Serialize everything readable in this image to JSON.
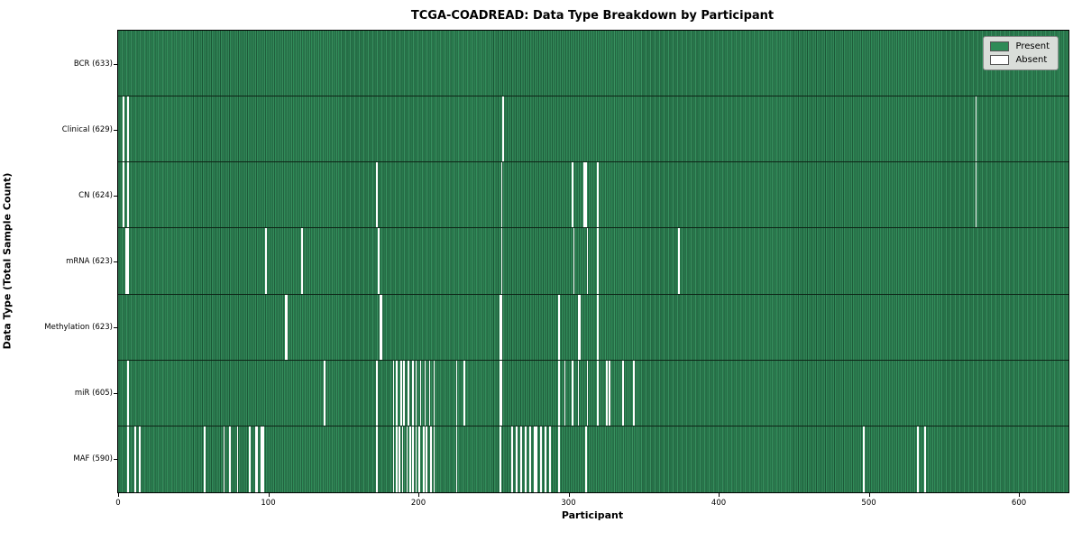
{
  "title": "TCGA-COADREAD: Data Type Breakdown by Participant",
  "chart_data": {
    "type": "heatmap",
    "title": "TCGA-COADREAD: Data Type Breakdown by Participant",
    "xlabel": "Participant",
    "ylabel": "Data Type (Total Sample Count)",
    "n_participants": 633,
    "x_ticks": [
      0,
      100,
      200,
      300,
      400,
      500,
      600
    ],
    "grid": false,
    "colors": {
      "present": "#2e8b57",
      "absent": "#ffffff",
      "cell_edge": "#0d2416"
    },
    "legend": {
      "position": "upper right",
      "entries": [
        {
          "label": "Present",
          "color": "#2e8b57"
        },
        {
          "label": "Absent",
          "color": "#ffffff"
        }
      ]
    },
    "rows": [
      {
        "label": "BCR (633)",
        "data_type": "BCR",
        "present_count": 633,
        "absent_indices": []
      },
      {
        "label": "Clinical (629)",
        "data_type": "Clinical",
        "present_count": 629,
        "absent_indices": [
          3,
          6,
          256,
          571
        ]
      },
      {
        "label": "CN (624)",
        "data_type": "CN",
        "present_count": 624,
        "absent_indices": [
          3,
          6,
          172,
          255,
          302,
          310,
          311,
          319,
          571
        ]
      },
      {
        "label": "mRNA (623)",
        "data_type": "mRNA",
        "present_count": 623,
        "absent_indices": [
          5,
          6,
          98,
          122,
          173,
          255,
          303,
          312,
          319,
          373
        ]
      },
      {
        "label": "Methylation (623)",
        "data_type": "Methylation",
        "present_count": 623,
        "absent_indices": [
          111,
          112,
          174,
          175,
          254,
          255,
          293,
          306,
          307,
          319
        ]
      },
      {
        "label": "miR (605)",
        "data_type": "miR",
        "present_count": 605,
        "absent_indices": [
          6,
          137,
          172,
          183,
          185,
          188,
          190,
          193,
          196,
          198,
          201,
          204,
          207,
          210,
          225,
          230,
          254,
          255,
          293,
          297,
          302,
          306,
          312,
          319,
          325,
          327,
          336,
          343
        ]
      },
      {
        "label": "MAF (590)",
        "data_type": "MAF",
        "present_count": 590,
        "absent_indices": [
          6,
          11,
          14,
          57,
          70,
          74,
          79,
          87,
          91,
          92,
          95,
          96,
          172,
          183,
          185,
          187,
          189,
          192,
          194,
          196,
          198,
          200,
          203,
          205,
          208,
          210,
          225,
          254,
          262,
          265,
          268,
          271,
          274,
          277,
          278,
          281,
          284,
          287,
          293,
          311,
          496,
          532,
          537
        ]
      }
    ]
  }
}
